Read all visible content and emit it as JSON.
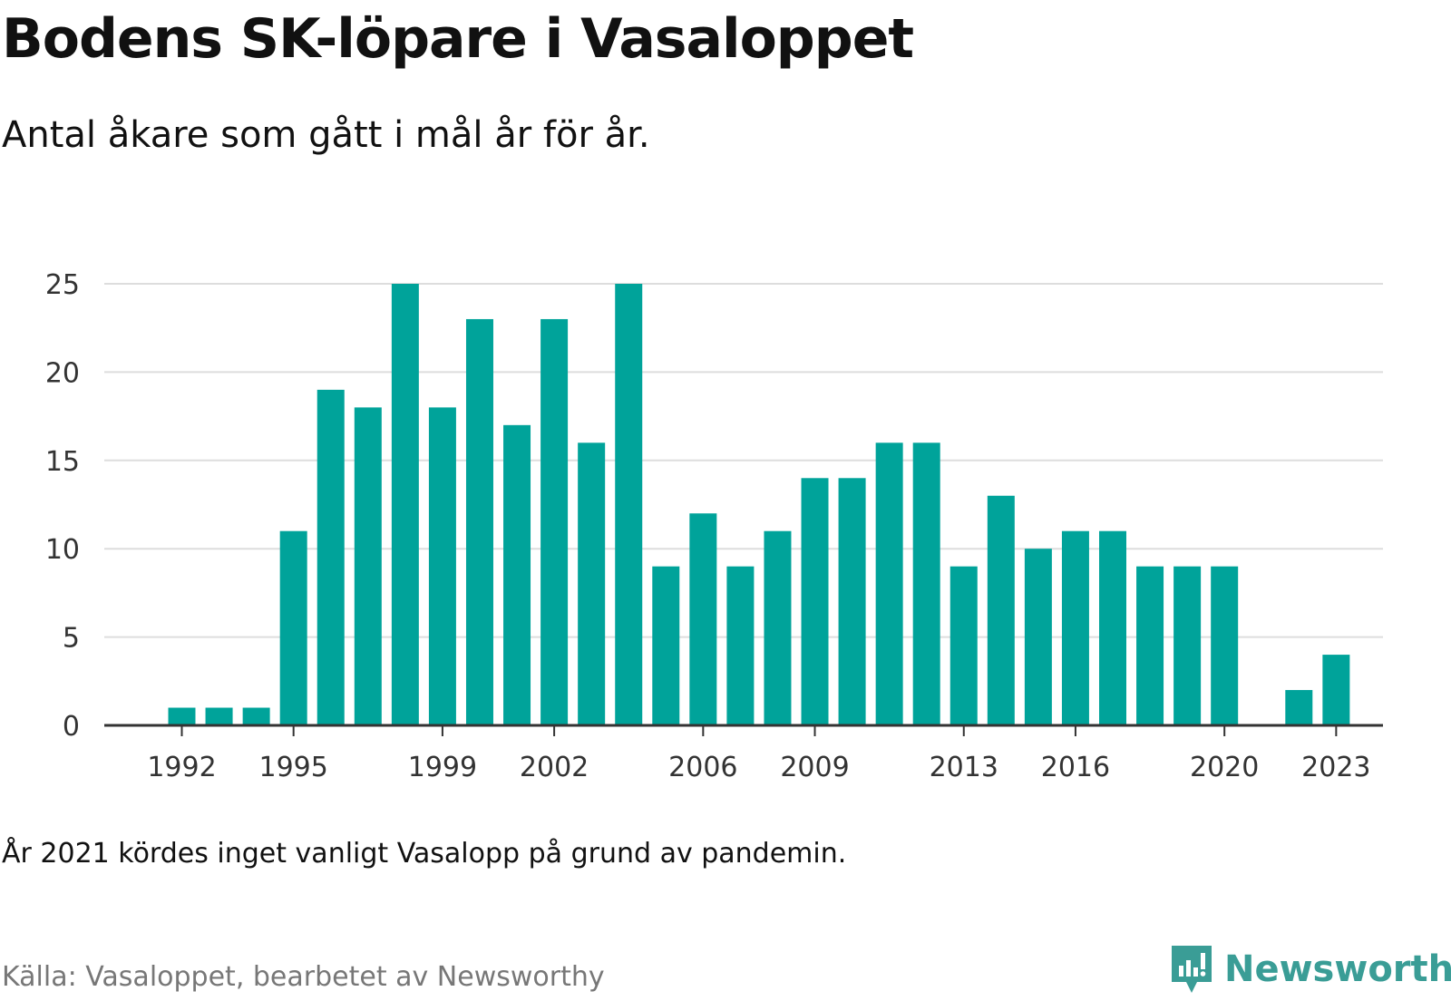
{
  "title": "Bodens SK-löpare i Vasaloppet",
  "subtitle": "Antal åkare som gått i mål år för år.",
  "note": "År 2021 kördes inget vanligt Vasalopp på grund av pandemin.",
  "source": "Källa: Vasaloppet, bearbetet av Newsworthy",
  "logo": {
    "text": "Newsworthy",
    "icon": "bar-chart-speech-icon"
  },
  "colors": {
    "bar": "#00a39a",
    "grid": "#dddddd",
    "axis": "#333333",
    "logo": "#3a9d96"
  },
  "chart_data": {
    "type": "bar",
    "x": [
      1992,
      1993,
      1994,
      1995,
      1996,
      1997,
      1998,
      1999,
      2000,
      2001,
      2002,
      2003,
      2004,
      2005,
      2006,
      2007,
      2008,
      2009,
      2010,
      2011,
      2012,
      2013,
      2014,
      2015,
      2016,
      2017,
      2018,
      2019,
      2020,
      2021,
      2022,
      2023
    ],
    "values": [
      1,
      1,
      1,
      11,
      19,
      18,
      25,
      18,
      23,
      17,
      23,
      16,
      25,
      9,
      12,
      9,
      11,
      14,
      14,
      16,
      16,
      9,
      13,
      10,
      11,
      11,
      9,
      9,
      9,
      0,
      2,
      4
    ],
    "x_tick_labels": [
      "1992",
      "1995",
      "1999",
      "2002",
      "2006",
      "2009",
      "2013",
      "2016",
      "2020",
      "2023"
    ],
    "y_ticks": [
      0,
      5,
      10,
      15,
      20,
      25
    ],
    "ylim": [
      0,
      25
    ],
    "xlim": [
      1990,
      2025
    ],
    "grid": true
  }
}
